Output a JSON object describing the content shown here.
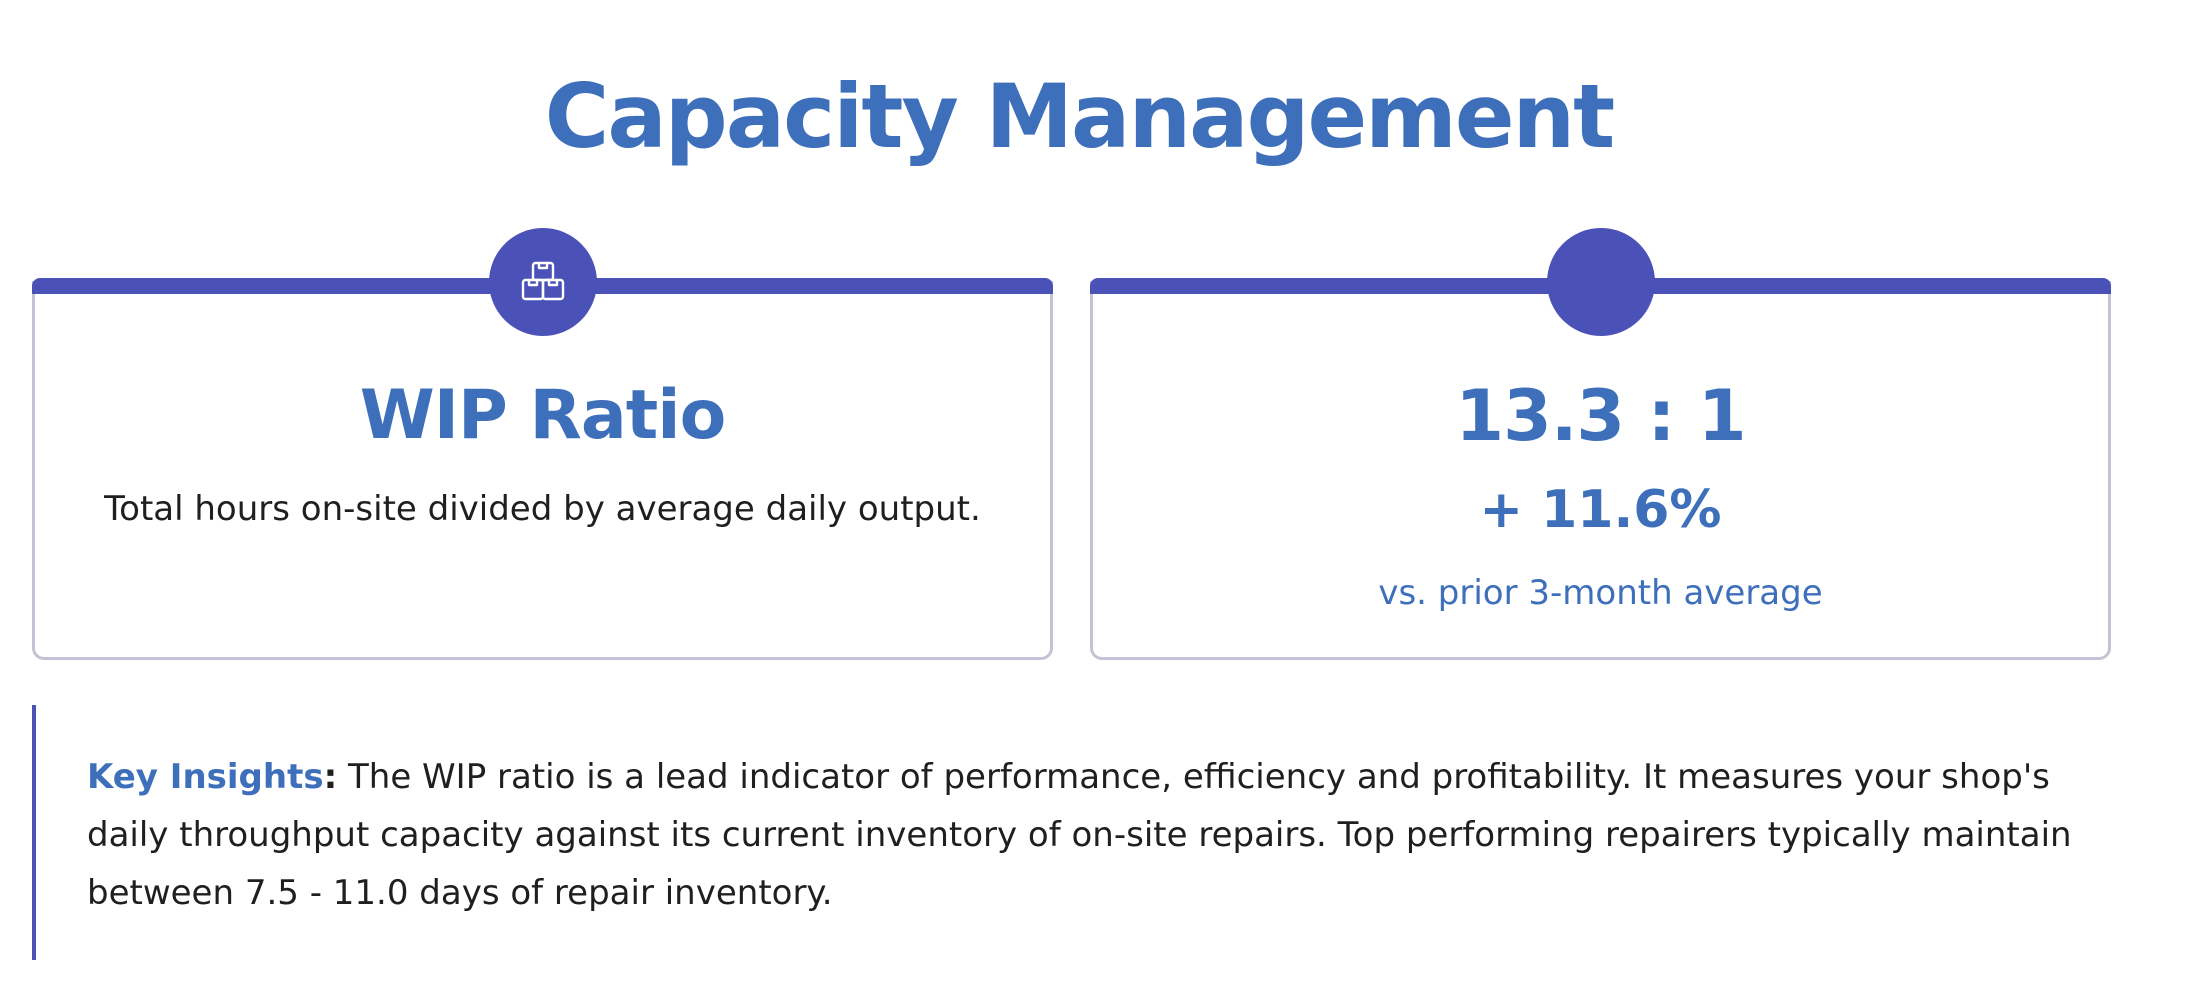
{
  "page": {
    "title": "Capacity Management"
  },
  "metric_card": {
    "icon": "boxes-icon",
    "title": "WIP Ratio",
    "description": "Total hours on-site divided by average daily output."
  },
  "value_card": {
    "icon": "blank-circle",
    "ratio": "13.3 : 1",
    "change": "+ 11.6%",
    "change_caption": "vs. prior 3-month average"
  },
  "insights": {
    "label": "Key Insights",
    "colon": ":",
    "text": " The WIP ratio is a lead indicator of performance, efficiency and profitability. It measures your shop's daily throughput capacity against its current inventory of on-site repairs. Top performing repairers typically maintain between 7.5 - 11.0 days of repair inventory."
  },
  "colors": {
    "accent": "#4a52b8",
    "heading": "#3d6fba",
    "border": "#c4c2d6",
    "text": "#1f1f1f"
  }
}
